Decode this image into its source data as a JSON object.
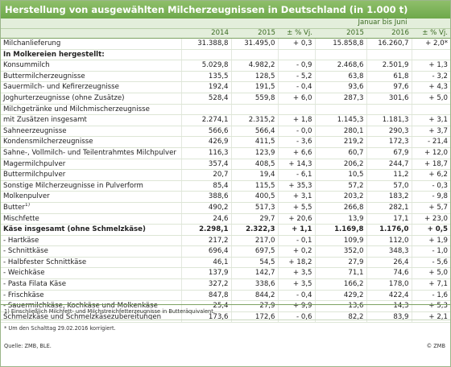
{
  "title": "Herstellung von ausgewählten Milcherzeugnissen in Deutschland (in 1.000 t)",
  "table": {
    "group_header": "Januar bis Juni",
    "columns": [
      "2014",
      "2015",
      "± % Vj.",
      "2015",
      "2016",
      "± % Vj."
    ],
    "rows": [
      {
        "label": "Milchanlieferung",
        "values": [
          "31.388,8",
          "31.495,0",
          "+ 0,3",
          "15.858,8",
          "16.260,7",
          "+ 2,0*"
        ]
      },
      {
        "label": "In Molkereien hergestellt:",
        "bold": true
      },
      {
        "label": "Konsummilch",
        "values": [
          "5.029,8",
          "4.982,2",
          "- 0,9",
          "2.468,6",
          "2.501,9",
          "+ 1,3"
        ]
      },
      {
        "label": "Buttermilcherzeugnisse",
        "values": [
          "135,5",
          "128,5",
          "- 5,2",
          "63,8",
          "61,8",
          "- 3,2"
        ]
      },
      {
        "label": "Sauermilch- und Kefirerzeugnisse",
        "values": [
          "192,4",
          "191,5",
          "- 0,4",
          "93,6",
          "97,6",
          "+ 4,3"
        ]
      },
      {
        "label": "Joghurterzeugnisse (ohne Zusätze)",
        "values": [
          "528,4",
          "559,8",
          "+ 6,0",
          "287,3",
          "301,6",
          "+ 5,0"
        ]
      },
      {
        "label": "Milchgetränke und Milchmischerzeugnisse"
      },
      {
        "label": "mit Zusätzen insgesamt",
        "values": [
          "2.274,1",
          "2.315,2",
          "+ 1,8",
          "1.145,3",
          "1.181,3",
          "+ 3,1"
        ]
      },
      {
        "label": "Sahneerzeugnisse",
        "values": [
          "566,6",
          "566,4",
          "- 0,0",
          "280,1",
          "290,3",
          "+ 3,7"
        ]
      },
      {
        "label": "Kondensmilcherzeugnisse",
        "values": [
          "426,9",
          "411,5",
          "- 3,6",
          "219,2",
          "172,3",
          "- 21,4"
        ]
      },
      {
        "label": "Sahne-, Vollmilch- und Teilentrahmtes Milchpulver",
        "values": [
          "116,3",
          "123,9",
          "+ 6,6",
          "60,7",
          "67,9",
          "+ 12,0"
        ]
      },
      {
        "label": "Magermilchpulver",
        "values": [
          "357,4",
          "408,5",
          "+ 14,3",
          "206,2",
          "244,7",
          "+ 18,7"
        ]
      },
      {
        "label": "Buttermilchpulver",
        "values": [
          "20,7",
          "19,4",
          "- 6,1",
          "10,5",
          "11,2",
          "+ 6,2"
        ]
      },
      {
        "label": "Sonstige Milcherzeugnisse in Pulverform",
        "values": [
          "85,4",
          "115,5",
          "+ 35,3",
          "57,2",
          "57,0",
          "- 0,3"
        ]
      },
      {
        "label": "Molkenpulver",
        "values": [
          "388,6",
          "400,5",
          "+ 3,1",
          "203,2",
          "183,2",
          "- 9,8"
        ]
      },
      {
        "label": "Butter",
        "note": "1)",
        "values": [
          "490,2",
          "517,3",
          "+ 5,5",
          "266,8",
          "282,1",
          "+ 5,7"
        ]
      },
      {
        "label": "Mischfette",
        "values": [
          "24,6",
          "29,7",
          "+ 20,6",
          "13,9",
          "17,1",
          "+ 23,0"
        ]
      },
      {
        "label": "Käse insgesamt (ohne Schmelzkäse)",
        "bold": true,
        "values": [
          "2.298,1",
          "2.322,3",
          "+ 1,1",
          "1.169,8",
          "1.176,0",
          "+ 0,5"
        ]
      },
      {
        "label": "- Hartkäse",
        "values": [
          "217,2",
          "217,0",
          "- 0,1",
          "109,9",
          "112,0",
          "+ 1,9"
        ]
      },
      {
        "label": "- Schnittkäse",
        "values": [
          "696,4",
          "697,5",
          "+ 0,2",
          "352,0",
          "348,3",
          "- 1,0"
        ]
      },
      {
        "label": "- Halbfester Schnittkäse",
        "values": [
          "46,1",
          "54,5",
          "+ 18,2",
          "27,9",
          "26,4",
          "- 5,6"
        ]
      },
      {
        "label": "- Weichkäse",
        "values": [
          "137,9",
          "142,7",
          "+ 3,5",
          "71,1",
          "74,6",
          "+ 5,0"
        ]
      },
      {
        "label": "- Pasta Filata Käse",
        "values": [
          "327,2",
          "338,6",
          "+ 3,5",
          "166,2",
          "178,0",
          "+ 7,1"
        ]
      },
      {
        "label": "- Frischkäse",
        "values": [
          "847,8",
          "844,2",
          "- 0,4",
          "429,2",
          "422,4",
          "- 1,6"
        ]
      },
      {
        "label": "- Sauermilchkäse, Kochkäse und Molkenkäse",
        "values": [
          "25,4",
          "27,9",
          "+ 9,9",
          "13,6",
          "14,3",
          "+ 5,3"
        ]
      },
      {
        "label": "Schmelzkäse und Schmelzkäsezubereitungen",
        "values": [
          "173,6",
          "172,6",
          "- 0,6",
          "82,2",
          "83,9",
          "+ 2,1"
        ]
      }
    ]
  },
  "footnotes": [
    "1) Einschließlich Milchfett- und Milchstreichfetterzeugnisse in Butteräquivalent.",
    "* Um den Schalttag 29.02.2016 korrigiert."
  ],
  "source": "Quelle: ZMB, BLE.",
  "copyright": "© ZMB"
}
